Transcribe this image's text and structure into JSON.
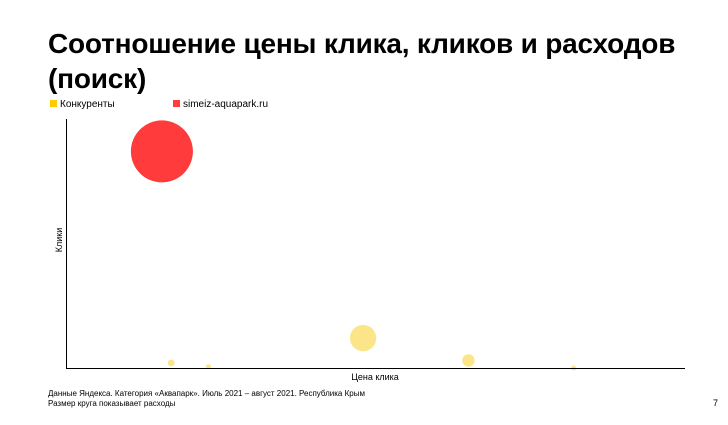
{
  "slide": {
    "title": "Соотношение цены клика, кликов и расходов (поиск)",
    "footnote_line1": "Данные Яндекса. Категория «Аквапарк». Июль 2021 – август 2021. Республика Крым",
    "footnote_line2": "Размер круга показывает расходы",
    "page_number": "7"
  },
  "chart_data": {
    "type": "scatter",
    "title": "Соотношение цены клика, кликов и расходов (поиск)",
    "xlabel": "Цена клика",
    "ylabel": "Клики",
    "grid": false,
    "legend_position": "top-left",
    "xlim": [
      0,
      100
    ],
    "ylim": [
      0,
      100
    ],
    "size_meaning": "Размер круга показывает расходы",
    "series": [
      {
        "name": "Конкуренты",
        "color": "#fce588",
        "points": [
          {
            "x": 17,
            "y": 2,
            "size": 1.2
          },
          {
            "x": 23,
            "y": 0.5,
            "size": 0.5
          },
          {
            "x": 48,
            "y": 12,
            "size": 18
          },
          {
            "x": 65,
            "y": 3,
            "size": 4
          },
          {
            "x": 82,
            "y": 0,
            "size": 0.2
          }
        ]
      },
      {
        "name": "simeiz-aquapark.ru",
        "color": "#ff3b3b",
        "points": [
          {
            "x": 15.5,
            "y": 87,
            "size": 100
          }
        ]
      }
    ]
  }
}
